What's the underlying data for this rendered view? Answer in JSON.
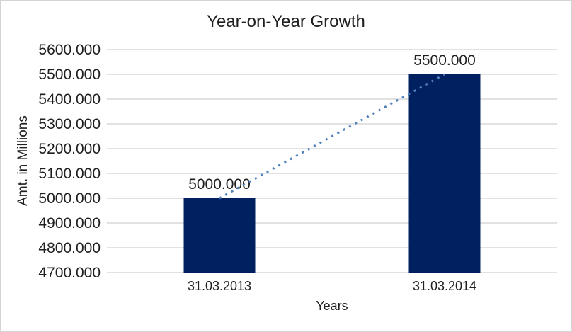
{
  "chart_data": {
    "type": "bar",
    "title": "Year-on-Year Growth",
    "xlabel": "Years",
    "ylabel": "Amt. in Millions",
    "categories": [
      "31.03.2013",
      "31.03.2014"
    ],
    "values": [
      5000,
      5500
    ],
    "data_labels": [
      "5000.000",
      "5500.000"
    ],
    "ylim": [
      4700,
      5600
    ],
    "y_ticks": [
      {
        "value": 4700,
        "label": "4700.000"
      },
      {
        "value": 4800,
        "label": "4800.000"
      },
      {
        "value": 4900,
        "label": "4900.000"
      },
      {
        "value": 5000,
        "label": "5000.000"
      },
      {
        "value": 5100,
        "label": "5100.000"
      },
      {
        "value": 5200,
        "label": "5200.000"
      },
      {
        "value": 5300,
        "label": "5300.000"
      },
      {
        "value": 5400,
        "label": "5400.000"
      },
      {
        "value": 5500,
        "label": "5500.000"
      },
      {
        "value": 5600,
        "label": "5600.000"
      }
    ],
    "grid": "horizontal",
    "legend": "none",
    "trendline": {
      "type": "linear",
      "style": "dotted",
      "connects": [
        5000,
        5500
      ]
    },
    "colors": {
      "bar": "#002060",
      "trendline": "#4F81BD",
      "gridline": "#D9D9D9",
      "text": "#1F1F1F",
      "frame_border": "#D3D3D3",
      "background": "#FFFFFF"
    }
  }
}
